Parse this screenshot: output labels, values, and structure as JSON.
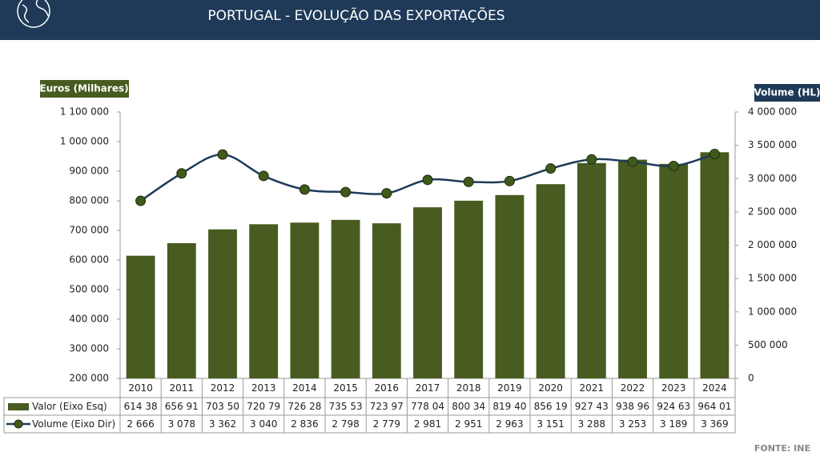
{
  "header": {
    "title": "PORTUGAL  - EVOLUÇÃO DAS EXPORTAÇÕES"
  },
  "chart_data": {
    "type": "bar-line",
    "y_label": "Euros (Milhares)",
    "y2_label": "Volume (HL)",
    "categories": [
      "2010",
      "2011",
      "2012",
      "2013",
      "2014",
      "2015",
      "2016",
      "2017",
      "2018",
      "2019",
      "2020",
      "2021",
      "2022",
      "2023",
      "2024"
    ],
    "series": [
      {
        "name": "Valor (Eixo Esq)",
        "type": "bar",
        "color": "#485b20",
        "values": [
          614380,
          656910,
          703500,
          720790,
          726280,
          735530,
          723970,
          778040,
          800340,
          819400,
          856190,
          927430,
          938960,
          924630,
          964010
        ],
        "value_labels": [
          "614 38",
          "656 91",
          "703 50",
          "720 79",
          "726 28",
          "735 53",
          "723 97",
          "778 04",
          "800 34",
          "819 40",
          "856 19",
          "927 43",
          "938 96",
          "924 63",
          "964 01"
        ]
      },
      {
        "name": "Volume (Eixo Dir)",
        "type": "line",
        "axis": "y2",
        "color": "#1f3a5a",
        "marker_color": "#3f5a1a",
        "values": [
          2666000,
          3078000,
          3362000,
          3040000,
          2836000,
          2798000,
          2779000,
          2981000,
          2951000,
          2963000,
          3151000,
          3288000,
          3253000,
          3189000,
          3369000
        ],
        "value_labels": [
          "2 666",
          "3 078",
          "3 362",
          "3 040",
          "2 836",
          "2 798",
          "2 779",
          "2 981",
          "2 951",
          "2 963",
          "3 151",
          "3 288",
          "3 253",
          "3 189",
          "3 369"
        ]
      }
    ],
    "ylim": [
      200000,
      1100000
    ],
    "yticks": [
      {
        "value": 200000,
        "label": "200 000"
      },
      {
        "value": 300000,
        "label": "300 000"
      },
      {
        "value": 400000,
        "label": "400 000"
      },
      {
        "value": 500000,
        "label": "500 000"
      },
      {
        "value": 600000,
        "label": "600 000"
      },
      {
        "value": 700000,
        "label": "700 000"
      },
      {
        "value": 800000,
        "label": "800 000"
      },
      {
        "value": 900000,
        "label": "900 000"
      },
      {
        "value": 1000000,
        "label": "1 000 000"
      },
      {
        "value": 1100000,
        "label": "1 100 000"
      }
    ],
    "y2lim": [
      0,
      4000000
    ],
    "y2ticks": [
      0,
      {
        "value": 500000,
        "label": "500 000"
      },
      {
        "value": 1000000,
        "label": "1 000 000"
      },
      {
        "value": 1500000,
        "label": "1 500 000"
      },
      {
        "value": 2000000,
        "label": "2 000 000"
      },
      {
        "value": 2500000,
        "label": "2 500 000"
      },
      {
        "value": 3000000,
        "label": "3 000 000"
      },
      {
        "value": 3500000,
        "label": "3 500 000"
      },
      {
        "value": 4000000,
        "label": "4 000 000"
      }
    ],
    "grid": false,
    "source": "FONTE: INE"
  }
}
